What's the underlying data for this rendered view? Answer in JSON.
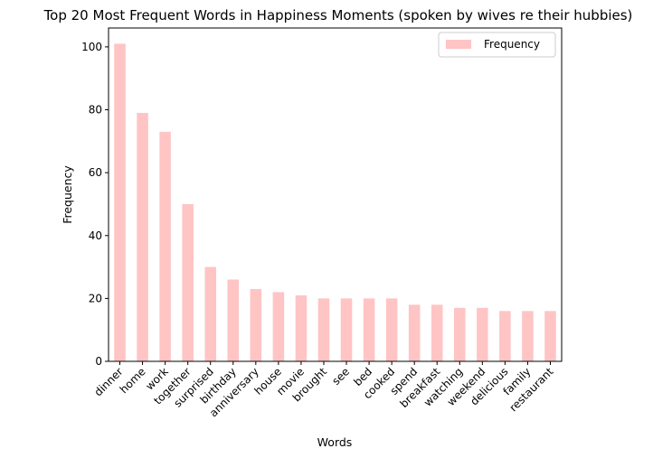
{
  "chart_data": {
    "type": "bar",
    "title": "Top 20 Most Frequent Words in Happiness Moments (spoken by wives re their hubbies)",
    "xlabel": "Words",
    "ylabel": "Frequency",
    "ylim": [
      0,
      106
    ],
    "yticks": [
      0,
      20,
      40,
      60,
      80,
      100
    ],
    "grid": false,
    "legend_position": "top-right",
    "series": [
      {
        "name": "Frequency",
        "color": "#ffc4c4",
        "values": [
          101,
          79,
          73,
          50,
          30,
          26,
          23,
          22,
          21,
          20,
          20,
          20,
          20,
          18,
          18,
          17,
          17,
          16,
          16,
          16
        ]
      }
    ],
    "categories": [
      "dinner",
      "home",
      "work",
      "together",
      "surprised",
      "birthday",
      "anniversary",
      "house",
      "movie",
      "brought",
      "see",
      "bed",
      "cooked",
      "spend",
      "breakfast",
      "watching",
      "weekend",
      "delicious",
      "family",
      "restaurant"
    ]
  }
}
